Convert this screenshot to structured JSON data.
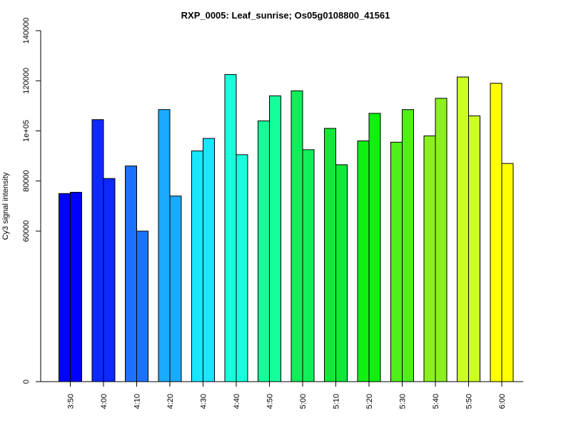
{
  "chart_data": {
    "type": "bar",
    "title": "RXP_0005: Leaf_sunrise; Os05g0108800_41561",
    "xlabel": "",
    "ylabel": "Cy3 signal intensity",
    "ylim": [
      0,
      140000
    ],
    "y_axis_scale": "piecewise (break between 0 and 60000)",
    "yticks": [
      {
        "value": 0,
        "label": "0"
      },
      {
        "value": 60000,
        "label": "60000"
      },
      {
        "value": 80000,
        "label": "80000"
      },
      {
        "value": 100000,
        "label": "1e+05"
      },
      {
        "value": 120000,
        "label": "120000"
      },
      {
        "value": 140000,
        "label": "140000"
      }
    ],
    "grid": false,
    "legend": "none",
    "categories": [
      "3:50",
      "4:00",
      "4:10",
      "4:20",
      "4:30",
      "4:40",
      "4:50",
      "5:00",
      "5:10",
      "5:20",
      "5:30",
      "5:40",
      "5:50",
      "6:00"
    ],
    "series": [
      {
        "values": [
          75000,
          104500,
          86000,
          108500,
          92000,
          122500,
          104000,
          116000,
          101000,
          96000,
          95500,
          98000,
          121500,
          119000
        ]
      },
      {
        "values": [
          75500,
          81000,
          60000,
          74000,
          97000,
          90500,
          114000,
          92500,
          86500,
          107000,
          108500,
          113000,
          106000,
          87000
        ]
      }
    ],
    "colors": [
      "#0000ff",
      "#0e29ff",
      "#1c72ff",
      "#1aaaff",
      "#18e6ff",
      "#18ffdc",
      "#14ff9a",
      "#10ee5a",
      "#12e838",
      "#11f010",
      "#4ef018",
      "#8cf020",
      "#ccff22",
      "#ffff00"
    ]
  }
}
